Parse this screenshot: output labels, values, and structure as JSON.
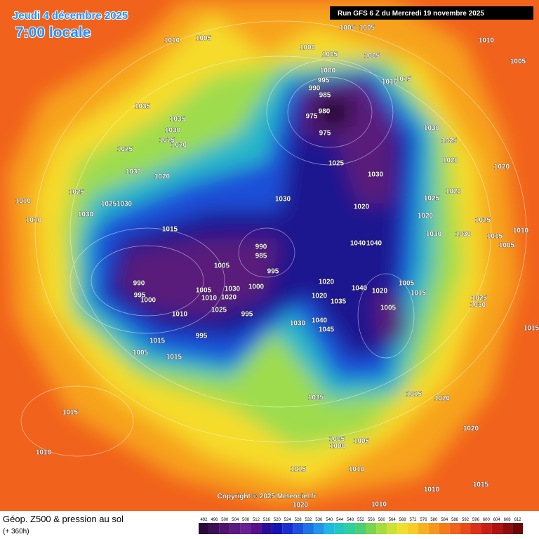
{
  "header": {
    "date": "Jeudi 4 décembre 2025",
    "time": "7:00 locale",
    "run": "Run GFS 6 Z du Mercredi 19 novembre 2025"
  },
  "map": {
    "copyright": "Copyright © 2025 Meteociel.fr",
    "contour_labels": [
      "1005",
      "1010",
      "1000",
      "1005",
      "1005",
      "1005",
      "1005",
      "1010",
      "1005",
      "1000",
      "995",
      "990",
      "985",
      "980",
      "975",
      "975",
      "1010",
      "1015",
      "1035",
      "1035",
      "1030",
      "1025",
      "1020",
      "1025",
      "1030",
      "1020",
      "1025",
      "1010",
      "1030",
      "1025",
      "1030",
      "1010",
      "1015",
      "1030",
      "1025",
      "1030",
      "1020",
      "1030",
      "1025",
      "1020",
      "1020",
      "1020",
      "1025",
      "1020",
      "1030",
      "1030",
      "1025",
      "1015",
      "1005",
      "1010",
      "1040",
      "1040",
      "990",
      "985",
      "995",
      "1005",
      "990",
      "995",
      "1000",
      "1005",
      "1030",
      "1000",
      "1010",
      "1020",
      "1025",
      "995",
      "1010",
      "995",
      "1015",
      "1005",
      "1015",
      "1020",
      "1020",
      "1035",
      "1040",
      "1020",
      "1005",
      "1015",
      "1005",
      "1025",
      "1030",
      "1015",
      "1030",
      "1040",
      "1045",
      "1015",
      "1020",
      "1020",
      "1035",
      "1015",
      "1010",
      "1005",
      "1000",
      "1005",
      "1015",
      "1010",
      "1010",
      "1015",
      "1020",
      "1010"
    ]
  },
  "legend": {
    "title": "Géop. Z500 & pression au sol",
    "subtitle": "(+ 360h)",
    "scale": [
      492,
      496,
      500,
      504,
      508,
      512,
      516,
      520,
      524,
      528,
      532,
      536,
      540,
      544,
      548,
      552,
      556,
      560,
      564,
      568,
      572,
      576,
      580,
      584,
      588,
      592,
      596,
      600,
      604,
      608,
      612
    ]
  }
}
